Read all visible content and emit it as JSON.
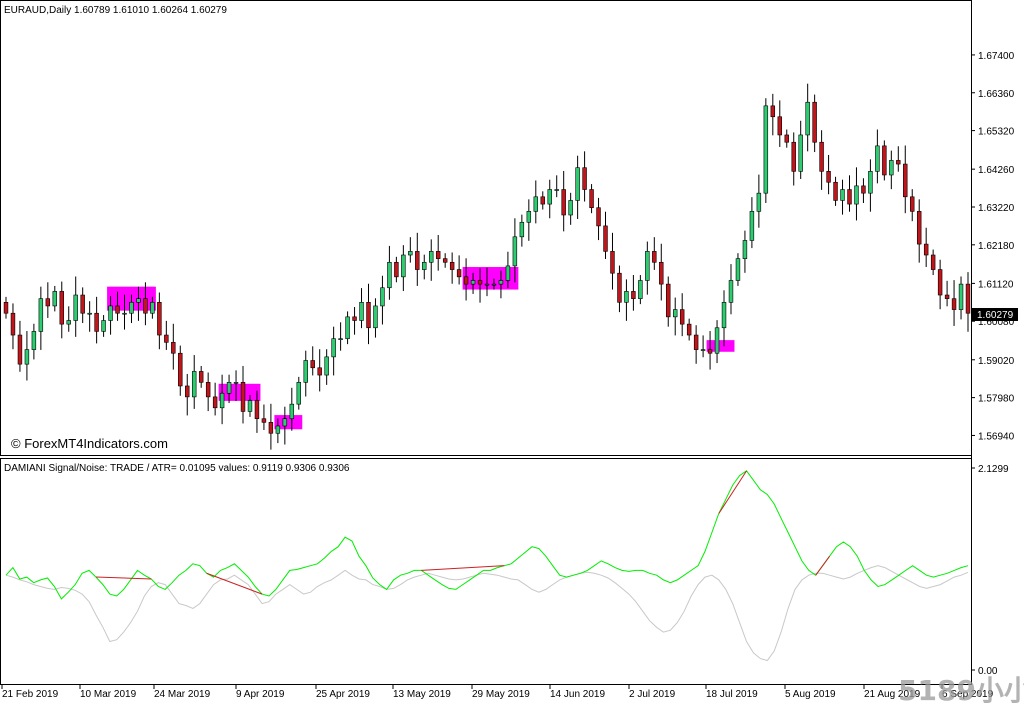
{
  "price_panel": {
    "header": "EURAUD,Daily  1.60789 1.61010 1.60264 1.60279",
    "watermark": "© ForexMT4Indicators.com",
    "current_price": "1.60279"
  },
  "indicator_panel": {
    "header": "DAMIANI Signal/Noise: TRADE  /  ATR= 0.01095    values: 0.9119 0.9306 0.9306"
  },
  "corner_watermark": "5189小小网",
  "colors": {
    "bull": "#2ecc71",
    "bear": "#c0151a",
    "highlight": "#ff00ff",
    "signal": "#00ee00",
    "noise": "#c8c8c8",
    "cross": "#cc2222"
  },
  "chart_data": [
    {
      "type": "candlestick",
      "title": "EURAUD,Daily",
      "ohlc_header": {
        "open": 1.60789,
        "high": 1.6101,
        "low": 1.60264,
        "close": 1.60279
      },
      "ylim": [
        1.5654,
        1.6836
      ],
      "y_ticks": [
        "1.67400",
        "1.66360",
        "1.65320",
        "1.64260",
        "1.63220",
        "1.62180",
        "1.61120",
        "1.60080",
        "1.59020",
        "1.57980",
        "1.56940"
      ],
      "x_ticks": [
        "21 Feb 2019",
        "10 Mar 2019",
        "24 Mar 2019",
        "9 Apr 2019",
        "25 Apr 2019",
        "13 May 2019",
        "29 May 2019",
        "14 Jun 2019",
        "2 Jul 2019",
        "18 Jul 2019",
        "5 Aug 2019",
        "21 Aug 2019",
        "6 Sep 2019"
      ],
      "closes": [
        1.603,
        1.597,
        1.589,
        1.593,
        1.598,
        1.607,
        1.605,
        1.609,
        1.6,
        1.601,
        1.608,
        1.603,
        1.603,
        1.598,
        1.601,
        1.605,
        1.603,
        1.603,
        1.606,
        1.607,
        1.603,
        1.606,
        1.597,
        1.595,
        1.592,
        1.583,
        1.58,
        1.587,
        1.584,
        1.58,
        1.577,
        1.581,
        1.584,
        1.584,
        1.576,
        1.579,
        1.574,
        1.573,
        1.57,
        1.572,
        1.574,
        1.578,
        1.584,
        1.59,
        1.588,
        1.586,
        1.591,
        1.596,
        1.596,
        1.602,
        1.601,
        1.606,
        1.599,
        1.605,
        1.61,
        1.617,
        1.613,
        1.619,
        1.62,
        1.615,
        1.617,
        1.62,
        1.618,
        1.617,
        1.615,
        1.613,
        1.611,
        1.612,
        1.611,
        1.611,
        1.611,
        1.612,
        1.616,
        1.624,
        1.628,
        1.631,
        1.635,
        1.633,
        1.637,
        1.637,
        1.63,
        1.634,
        1.643,
        1.637,
        1.632,
        1.627,
        1.62,
        1.614,
        1.606,
        1.609,
        1.607,
        1.612,
        1.62,
        1.617,
        1.611,
        1.602,
        1.604,
        1.6,
        1.597,
        1.593,
        1.593,
        1.592,
        1.599,
        1.606,
        1.612,
        1.618,
        1.623,
        1.631,
        1.636,
        1.66,
        1.657,
        1.652,
        1.65,
        1.642,
        1.652,
        1.661,
        1.65,
        1.642,
        1.639,
        1.634,
        1.637,
        1.633,
        1.638,
        1.636,
        1.642,
        1.649,
        1.641,
        1.645,
        1.644,
        1.635,
        1.631,
        1.622,
        1.619,
        1.615,
        1.608,
        1.607,
        1.604,
        1.611,
        1.603
      ],
      "highlight_boxes": [
        {
          "from": 1.6092,
          "to": 1.6048
        },
        {
          "from": 1.5825,
          "to": 1.58
        },
        {
          "from": 1.5739,
          "to": 1.5722
        },
        {
          "from": 1.6146,
          "to": 1.6106
        },
        {
          "from": 1.5945,
          "to": 1.5935
        }
      ],
      "last_price": 1.60279
    },
    {
      "type": "line",
      "title": "DAMIANI Signal/Noise: TRADE",
      "ylim": [
        0.0,
        2.1299
      ],
      "y_ticks": [
        "2.1299",
        "0.00"
      ],
      "series": [
        {
          "name": "signal",
          "values": [
            1.0,
            1.08,
            0.96,
            0.98,
            0.92,
            0.95,
            0.97,
            0.88,
            0.75,
            0.82,
            0.9,
            1.02,
            1.05,
            0.98,
            0.9,
            0.8,
            0.78,
            0.85,
            0.95,
            1.05,
            1.0,
            0.96,
            0.88,
            0.85,
            0.92,
            1.0,
            1.05,
            1.12,
            1.1,
            1.02,
            0.98,
            1.05,
            1.08,
            1.12,
            1.05,
            0.98,
            0.88,
            0.8,
            0.78,
            0.85,
            0.95,
            1.05,
            1.06,
            1.08,
            1.1,
            1.12,
            1.18,
            1.25,
            1.3,
            1.4,
            1.36,
            1.2,
            1.1,
            0.97,
            0.9,
            0.85,
            0.95,
            1.0,
            1.02,
            1.05,
            1.05,
            1.0,
            0.95,
            0.9,
            0.86,
            0.85,
            0.9,
            0.95,
            1.0,
            1.05,
            1.05,
            1.08,
            1.1,
            1.12,
            1.18,
            1.24,
            1.3,
            1.28,
            1.2,
            1.1,
            1.0,
            0.98,
            1.0,
            1.02,
            1.05,
            1.1,
            1.15,
            1.12,
            1.08,
            1.05,
            1.04,
            1.05,
            1.05,
            1.02,
            1.0,
            0.95,
            0.92,
            0.95,
            1.0,
            1.05,
            1.1,
            1.25,
            1.45,
            1.65,
            1.8,
            1.95,
            2.05,
            2.1,
            2.0,
            1.9,
            1.85,
            1.75,
            1.6,
            1.45,
            1.3,
            1.15,
            1.05,
            1.0,
            1.1,
            1.2,
            1.3,
            1.35,
            1.3,
            1.2,
            1.05,
            0.95,
            0.88,
            0.9,
            0.95,
            1.0,
            1.05,
            1.1,
            1.05,
            1.0,
            0.98,
            1.0,
            1.02,
            1.05,
            1.08,
            1.1
          ]
        },
        {
          "name": "noise",
          "values": [
            1.0,
            0.98,
            0.95,
            0.93,
            0.9,
            0.88,
            0.86,
            0.85,
            0.87,
            0.86,
            0.84,
            0.8,
            0.72,
            0.58,
            0.45,
            0.3,
            0.32,
            0.4,
            0.5,
            0.62,
            0.78,
            0.88,
            0.92,
            0.9,
            0.8,
            0.7,
            0.68,
            0.65,
            0.7,
            0.8,
            0.9,
            0.95,
            0.96,
            1.0,
            0.95,
            0.9,
            0.8,
            0.7,
            0.72,
            0.8,
            0.85,
            0.9,
            0.85,
            0.8,
            0.82,
            0.88,
            0.92,
            0.95,
            1.0,
            1.05,
            1.0,
            0.96,
            0.95,
            0.9,
            0.88,
            0.85,
            0.86,
            0.9,
            0.95,
            0.98,
            1.0,
            1.02,
            1.0,
            0.98,
            0.96,
            0.95,
            0.96,
            0.98,
            1.0,
            1.02,
            1.01,
            1.0,
            0.98,
            0.96,
            0.95,
            0.9,
            0.85,
            0.82,
            0.85,
            0.9,
            0.95,
            0.98,
            1.0,
            1.02,
            1.03,
            1.02,
            1.0,
            0.97,
            0.92,
            0.86,
            0.8,
            0.72,
            0.62,
            0.52,
            0.45,
            0.4,
            0.42,
            0.5,
            0.62,
            0.78,
            0.9,
            0.98,
            1.0,
            0.95,
            0.85,
            0.7,
            0.5,
            0.3,
            0.18,
            0.12,
            0.1,
            0.2,
            0.4,
            0.65,
            0.85,
            0.95,
            1.0,
            1.02,
            1.02,
            1.0,
            0.98,
            0.96,
            0.98,
            1.02,
            1.05,
            1.08,
            1.1,
            1.08,
            1.04,
            1.0,
            0.96,
            0.92,
            0.88,
            0.86,
            0.88,
            0.9,
            0.94,
            0.98,
            1.0,
            1.03
          ]
        }
      ]
    }
  ]
}
